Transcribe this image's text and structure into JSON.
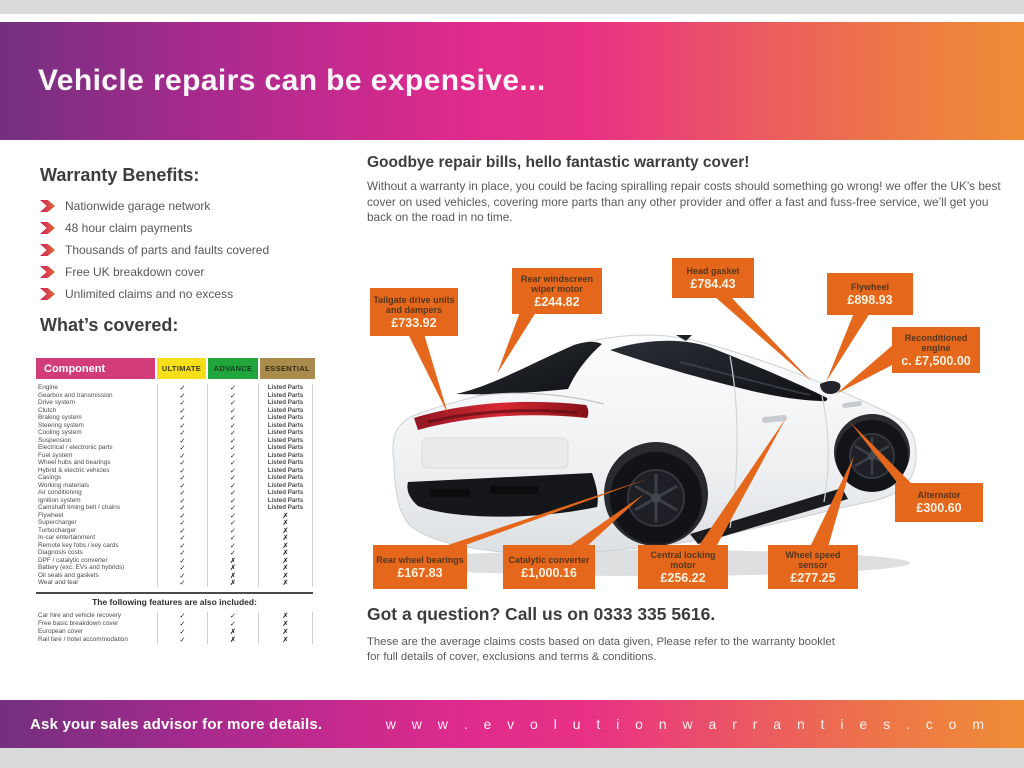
{
  "header": {
    "title": "Vehicle repairs can be expensive..."
  },
  "benefits": {
    "heading": "Warranty Benefits:",
    "items": [
      "Nationwide garage network",
      "48 hour claim payments",
      "Thousands of parts and faults covered",
      "Free UK breakdown cover",
      "Unlimited claims and no excess"
    ]
  },
  "covered": {
    "heading": "What’s covered:",
    "table": {
      "headers": [
        "Component",
        "ULTIMATE",
        "ADVANCE",
        "ESSENTIAL"
      ],
      "rows": [
        [
          "Engine",
          "✓",
          "✓",
          "Listed Parts"
        ],
        [
          "Gearbox and transmission",
          "✓",
          "✓",
          "Listed Parts"
        ],
        [
          "Drive system",
          "✓",
          "✓",
          "Listed Parts"
        ],
        [
          "Clutch",
          "✓",
          "✓",
          "Listed Parts"
        ],
        [
          "Braking system",
          "✓",
          "✓",
          "Listed Parts"
        ],
        [
          "Steering system",
          "✓",
          "✓",
          "Listed Parts"
        ],
        [
          "Cooling system",
          "✓",
          "✓",
          "Listed Parts"
        ],
        [
          "Suspension",
          "✓",
          "✓",
          "Listed Parts"
        ],
        [
          "Electrical / electronic parts",
          "✓",
          "✓",
          "Listed Parts"
        ],
        [
          "Fuel system",
          "✓",
          "✓",
          "Listed Parts"
        ],
        [
          "Wheel hubs and bearings",
          "✓",
          "✓",
          "Listed Parts"
        ],
        [
          "Hybrid & electric vehicles",
          "✓",
          "✓",
          "Listed Parts"
        ],
        [
          "Casings",
          "✓",
          "✓",
          "Listed Parts"
        ],
        [
          "Working materials",
          "✓",
          "✓",
          "Listed Parts"
        ],
        [
          "Air conditioning",
          "✓",
          "✓",
          "Listed Parts"
        ],
        [
          "Ignition system",
          "✓",
          "✓",
          "Listed Parts"
        ],
        [
          "Camshaft timing belt / chains",
          "✓",
          "✓",
          "Listed Parts"
        ],
        [
          "Flywheel",
          "✓",
          "✓",
          "✗"
        ],
        [
          "Supercharger",
          "✓",
          "✓",
          "✗"
        ],
        [
          "Turbocharger",
          "✓",
          "✓",
          "✗"
        ],
        [
          "In-car entertainment",
          "✓",
          "✓",
          "✗"
        ],
        [
          "Remote key fobs / key cards",
          "✓",
          "✓",
          "✗"
        ],
        [
          "Diagnosis costs",
          "✓",
          "✓",
          "✗"
        ],
        [
          "DPF / catalytic converter",
          "✓",
          "✗",
          "✗"
        ],
        [
          "Battery (exc. EVs and hybrids)",
          "✓",
          "✗",
          "✗"
        ],
        [
          "Oil seals and gaskets",
          "✓",
          "✗",
          "✗"
        ],
        [
          "Wear and tear",
          "✓",
          "✗",
          "✗"
        ]
      ]
    },
    "features_heading": "The following features are also included:",
    "features_rows": [
      [
        "Car hire and vehicle recovery",
        "✓",
        "✓",
        "✗"
      ],
      [
        "Free basic breakdown cover",
        "✓",
        "✓",
        "✗"
      ],
      [
        "European cover",
        "✓",
        "✗",
        "✗"
      ],
      [
        "Rail fare / hotel accommodation",
        "✓",
        "✗",
        "✗"
      ]
    ]
  },
  "intro": {
    "heading": "Goodbye repair bills, hello fantastic warranty cover!",
    "body": "Without a warranty in place, you could be facing spiralling repair costs should something go wrong! we offer the UK’s best cover on used vehicles, covering more parts than any other provider and offer a fast and fuss-free service, we’ll get you back on the road in no time."
  },
  "callouts": [
    {
      "id": "tailgate",
      "label": "Tailgate drive units and dampers",
      "price": "£733.92"
    },
    {
      "id": "rear-windscreen",
      "label": "Rear windscreen wiper motor",
      "price": "£244.82"
    },
    {
      "id": "head-gasket",
      "label": "Head gasket",
      "price": "£784.43"
    },
    {
      "id": "flywheel",
      "label": "Flywheel",
      "price": "£898.93"
    },
    {
      "id": "recon-engine",
      "label": "Reconditioned engine",
      "price": "c. £7,500.00"
    },
    {
      "id": "alternator",
      "label": "Alternator",
      "price": "£300.60"
    },
    {
      "id": "rear-wheel-bearings",
      "label": "Rear wheel bearings",
      "price": "£167.83"
    },
    {
      "id": "catalytic-converter",
      "label": "Catalytic converter",
      "price": "£1,000.16"
    },
    {
      "id": "central-locking",
      "label": "Central locking motor",
      "price": "£256.22"
    },
    {
      "id": "wheel-speed",
      "label": "Wheel speed sensor",
      "price": "£277.25"
    }
  ],
  "question": {
    "heading": "Got a question? Call us on 0333 335 5616.",
    "note": "These are the average claims costs based on data given, Please refer to the warranty booklet for full details of cover, exclusions and terms & conditions."
  },
  "footer": {
    "left": "Ask your sales advisor for more details.",
    "right": "w w w . e v o l u t i o n w a r r a n t i e s . c o m"
  },
  "colors": {
    "accent_orange": "#E5671C",
    "table_header_pink": "#D23D79",
    "tier_ultimate_yellow": "#F6DE1B",
    "tier_advance_green": "#21A63E",
    "tier_essential_tan": "#A98B4C",
    "gradient_purple": "#73307F",
    "gradient_pink": "#E93284",
    "gradient_orange": "#EF8D36"
  }
}
